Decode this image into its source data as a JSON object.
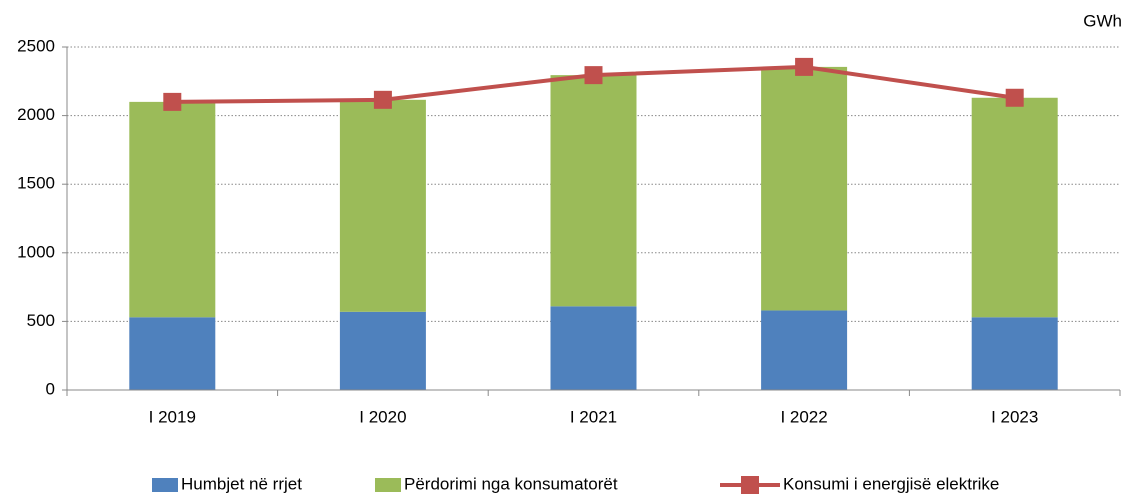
{
  "chart_data": {
    "type": "bar",
    "stacked": true,
    "y_unit": "GWh",
    "categories": [
      "I 2019",
      "I 2020",
      "I 2021",
      "I 2022",
      "I 2023"
    ],
    "series": [
      {
        "name": "Humbjet në rrjet",
        "color": "#4f81bd",
        "type": "bar",
        "values": [
          530,
          570,
          610,
          580,
          530
        ]
      },
      {
        "name": "Përdorimi nga konsumatorët",
        "color": "#9bbb59",
        "type": "bar",
        "values": [
          1570,
          1545,
          1685,
          1775,
          1600
        ]
      },
      {
        "name": "Konsumi i energjisë elektrike",
        "color": "#c0504d",
        "type": "line",
        "values": [
          2100,
          2115,
          2295,
          2355,
          2130
        ]
      }
    ],
    "ylim": [
      0,
      2500
    ],
    "yticks": [
      0,
      500,
      1000,
      1500,
      2000,
      2500
    ],
    "grid": true
  }
}
